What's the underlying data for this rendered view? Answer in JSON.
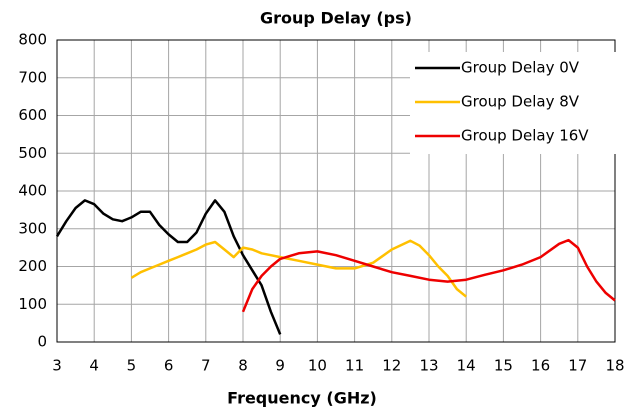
{
  "chart_data": {
    "type": "line",
    "title": "Group Delay (ps)",
    "xlabel": "Frequency (GHz)",
    "xlim": [
      3,
      18
    ],
    "xticks": [
      3,
      4,
      5,
      6,
      7,
      8,
      9,
      10,
      11,
      12,
      13,
      14,
      15,
      16,
      17,
      18
    ],
    "ylim": [
      0,
      800
    ],
    "yticks": [
      0,
      100,
      200,
      300,
      400,
      500,
      600,
      700,
      800
    ],
    "grid": true,
    "legend": "upper right",
    "series": [
      {
        "name": "Group Delay 0V",
        "color": "#000000",
        "x": [
          3,
          3.25,
          3.5,
          3.75,
          4,
          4.25,
          4.5,
          4.75,
          5,
          5.25,
          5.5,
          5.75,
          6,
          6.25,
          6.5,
          6.75,
          7,
          7.25,
          7.5,
          7.75,
          8,
          8.25,
          8.5,
          8.75,
          9
        ],
        "values": [
          280,
          320,
          355,
          375,
          365,
          340,
          325,
          320,
          330,
          345,
          345,
          310,
          285,
          265,
          265,
          290,
          340,
          375,
          345,
          280,
          230,
          190,
          150,
          80,
          20
        ]
      },
      {
        "name": "Group Delay 8V",
        "color": "#ffc000",
        "x": [
          5,
          5.25,
          5.5,
          5.75,
          6,
          6.25,
          6.5,
          6.75,
          7,
          7.25,
          7.5,
          7.75,
          8,
          8.25,
          8.5,
          8.75,
          9,
          9.5,
          10,
          10.5,
          11,
          11.5,
          12,
          12.5,
          12.75,
          13,
          13.25,
          13.5,
          13.75,
          14
        ],
        "values": [
          170,
          185,
          195,
          205,
          215,
          225,
          235,
          245,
          258,
          265,
          245,
          225,
          250,
          245,
          235,
          230,
          225,
          215,
          205,
          195,
          195,
          210,
          245,
          268,
          255,
          230,
          200,
          175,
          140,
          120
        ]
      },
      {
        "name": "Group Delay 16V",
        "color": "#ee0000",
        "x": [
          8,
          8.25,
          8.5,
          8.75,
          9,
          9.5,
          10,
          10.5,
          11,
          11.5,
          12,
          12.5,
          13,
          13.5,
          14,
          14.5,
          15,
          15.5,
          16,
          16.5,
          16.75,
          17,
          17.25,
          17.5,
          17.75,
          18
        ],
        "values": [
          80,
          140,
          175,
          200,
          220,
          235,
          240,
          230,
          215,
          200,
          185,
          175,
          165,
          160,
          165,
          178,
          190,
          205,
          225,
          260,
          270,
          250,
          200,
          160,
          130,
          110
        ]
      }
    ]
  }
}
